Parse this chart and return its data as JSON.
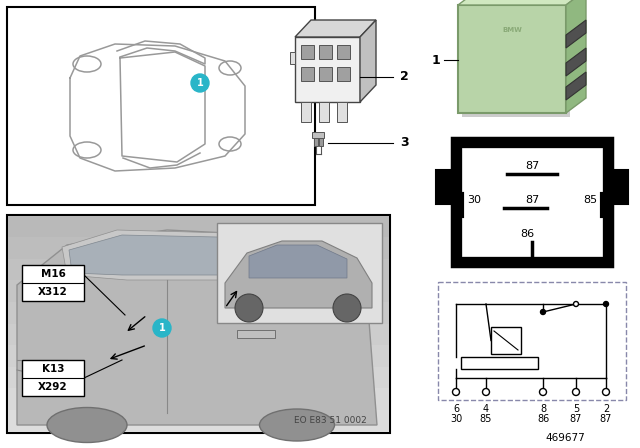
{
  "bg_color": "#ffffff",
  "fig_width": 6.4,
  "fig_height": 4.48,
  "dpi": 100,
  "teal_color": "#29b5c8",
  "relay_green": "#b8d4a8",
  "relay_green_dark": "#8aaa78",
  "footnote": "469677",
  "eo_label": "EO E83 51 0002",
  "label_m16": "M16",
  "label_x312": "X312",
  "label_k13": "K13",
  "label_x292": "X292",
  "gray_car": "#c8c8c8",
  "light_gray": "#e8e8e8",
  "mid_gray": "#b0b0b0",
  "dark_gray": "#808080",
  "outline_gray": "#aaaaaa",
  "photo_bg": "#d0d0d0",
  "car_outline_color": "#999999"
}
